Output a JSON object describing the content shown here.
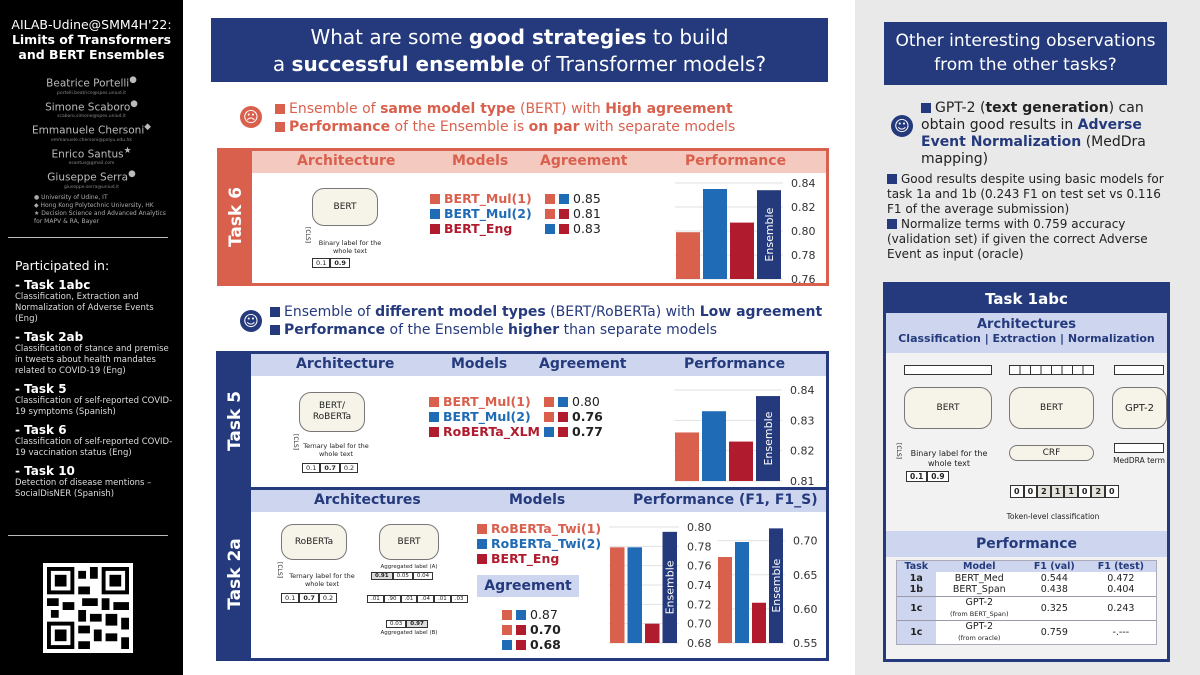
{
  "sidebar": {
    "title_line1": "AILAB-Udine@SMM4H'22:",
    "title_line2": "Limits of Transformers",
    "title_line3": "and BERT Ensembles",
    "authors": [
      {
        "name": "Beatrice Portelli",
        "mark": "●",
        "email": "portelli.beatrice@spes.uniud.it"
      },
      {
        "name": "Simone Scaboro",
        "mark": "●",
        "email": "scaboro.simone@spes.uniud.it"
      },
      {
        "name": "Emmanuele Chersoni",
        "mark": "◆",
        "email": "emmanuele.chersoni@polyu.edu.hk"
      },
      {
        "name": "Enrico Santus",
        "mark": "★",
        "email": "esantus@gmail.com"
      },
      {
        "name": "Giuseppe Serra",
        "mark": "●",
        "email": "giuseppe.serra@uniud.it"
      }
    ],
    "affiliations": [
      "● University of Udine, IT",
      "◆ Hong Kong Polytechnic University, HK",
      "★ Decision Science and Advanced Analytics for MAPV & RA, Bayer"
    ],
    "participated": "Participated in:",
    "tasks": [
      {
        "name": "- Task 1abc",
        "desc": "Classification, Extraction and Normalization of Adverse Events (Eng)"
      },
      {
        "name": "- Task 2ab",
        "desc": "Classification of stance and premise in tweets about health mandates related to COVID-19 (Eng)"
      },
      {
        "name": "- Task 5",
        "desc": "Classification of self-reported COVID-19 symptoms (Spanish)"
      },
      {
        "name": "- Task 6",
        "desc": "Classification of self-reported COVID-19 vaccination status (Eng)"
      },
      {
        "name": "- Task 10",
        "desc": "Detection of disease mentions – SocialDisNER (Spanish)"
      }
    ]
  },
  "main": {
    "title": {
      "a": "What are some ",
      "b": "good strategies",
      "c": " to build",
      "d": "a ",
      "e": "successful ensemble",
      "f": " of Transformer models?"
    },
    "sad": {
      "icon": "sad-face-icon",
      "l1": [
        "Ensemble of ",
        "same model type",
        " (BERT) with ",
        "High agreement"
      ],
      "l2": [
        "Performance",
        " of the Ensemble is ",
        "on par",
        " with separate models"
      ]
    },
    "happy": {
      "icon": "happy-face-icon",
      "l1": [
        "Ensemble of ",
        "different model types",
        " (BERT/RoBERTa) with ",
        "Low agreement"
      ],
      "l2": [
        "Performance",
        " of the Ensemble ",
        "higher",
        " than separate models"
      ]
    },
    "headers": {
      "architecture": "Architecture",
      "architectures": "Architectures",
      "models": "Models",
      "agreement": "Agreement",
      "performance": "Performance",
      "performance_f1": "Performance (F1, F1_S)"
    },
    "task6": {
      "label": "Task 6",
      "box": "BERT",
      "cls": "[CLS]",
      "note": "Binary label for the whole text",
      "cells": [
        "0.1",
        "0.9"
      ],
      "models": [
        "BERT_Mul(1)",
        "BERT_Mul(2)",
        "BERT_Eng"
      ],
      "agreement": [
        "0.85",
        "0.81",
        "0.83"
      ]
    },
    "task5": {
      "label": "Task 5",
      "box": "BERT/ RoBERTa",
      "cls": "[CLS]",
      "note": "Ternary label for the whole text",
      "cells": [
        "0.1",
        "0.7",
        "0.2"
      ],
      "models": [
        "BERT_Mul(1)",
        "BERT_Mul(2)",
        "RoBERTa_XLM"
      ],
      "agreement": [
        "0.80",
        "0.76",
        "0.77"
      ]
    },
    "task2a": {
      "label": "Task 2a",
      "box1": "RoBERTa",
      "box2": "BERT",
      "cls": "[CLS]",
      "note": "Ternary label for the whole text",
      "cells": [
        "0.1",
        "0.7",
        "0.2"
      ],
      "agg_a": "Aggregated label (A)",
      "agg_a_cells": [
        "0.91",
        "0.05",
        "0.04"
      ],
      "mid_cells": [
        ".01",
        ".90",
        ".01",
        ".04",
        ".01",
        ".03"
      ],
      "agg_b": "Aggregated label (B)",
      "agg_b_cells": [
        "0.03",
        "0.97"
      ],
      "models": [
        "RoBERTa_Twi(1)",
        "RoBERTa_Twi(2)",
        "BERT_Eng"
      ],
      "agreement": [
        "0.87",
        "0.70",
        "0.68"
      ]
    }
  },
  "colors": {
    "m1": "#d9604d",
    "m2": "#1f6bb5",
    "m3": "#b01c2e",
    "ens": "#253a7d"
  },
  "chart_data": [
    {
      "id": "task6",
      "type": "bar",
      "categories": [
        "BERT_Mul(1)",
        "BERT_Mul(2)",
        "BERT_Eng",
        "Ensemble"
      ],
      "values": [
        0.799,
        0.835,
        0.807,
        0.834
      ],
      "ylim": [
        0.76,
        0.84
      ],
      "ticks": [
        "0.84",
        "0.82",
        "0.80",
        "0.78",
        "0.76"
      ],
      "ensemble_label": "Ensemble"
    },
    {
      "id": "task5",
      "type": "bar",
      "categories": [
        "BERT_Mul(1)",
        "BERT_Mul(2)",
        "RoBERTa_XLM",
        "Ensemble"
      ],
      "values": [
        0.826,
        0.833,
        0.823,
        0.838
      ],
      "ylim": [
        0.81,
        0.84
      ],
      "ticks": [
        "0.84",
        "0.83",
        "0.82",
        "0.81"
      ],
      "ensemble_label": "Ensemble"
    },
    {
      "id": "task2a_f1",
      "type": "bar",
      "categories": [
        "RoBERTa_Twi(1)",
        "RoBERTa_Twi(2)",
        "BERT_Eng",
        "Ensemble"
      ],
      "values": [
        0.779,
        0.779,
        0.7,
        0.795
      ],
      "ylim": [
        0.68,
        0.8
      ],
      "ticks": [
        "0.80",
        "0.78",
        "0.76",
        "0.74",
        "0.72",
        "0.70",
        "0.68"
      ],
      "ensemble_label": "Ensemble"
    },
    {
      "id": "task2a_f1s",
      "type": "bar",
      "categories": [
        "RoBERTa_Twi(1)",
        "RoBERTa_Twi(2)",
        "BERT_Eng",
        "Ensemble"
      ],
      "values": [
        0.676,
        0.698,
        0.609,
        0.718
      ],
      "ylim": [
        0.55,
        0.72
      ],
      "ticks": [
        "0.70",
        "0.65",
        "0.60",
        "0.55"
      ],
      "ensemble_label": "Ensemble"
    }
  ],
  "right": {
    "title_l1": "Other interesting observations",
    "title_l2": "from the other tasks?",
    "gpt": [
      "GPT-2 (",
      "text generation",
      ") can obtain good results in ",
      "Adverse Event Normalization",
      " (MedDra mapping)"
    ],
    "b1": "Good results despite using basic models for task 1a and 1b (0.243 F1 on test set vs 0.116 F1 of the average submission)",
    "b2": "Normalize terms with 0.759 accuracy (validation set) if given the correct Adverse Event as input (oracle)",
    "task_title": "Task 1abc",
    "arch_title": "Architectures",
    "arch_sub": "Classification | Extraction | Normalization",
    "bert": "BERT",
    "cls": "[CLS]",
    "binary": "Binary label for the whole text",
    "cells": [
      "0.1",
      "0.9"
    ],
    "crf": "CRF",
    "tokens": [
      "0",
      "0",
      "2",
      "1",
      "1",
      "0",
      "2",
      "0"
    ],
    "token_label": "Token-level classification",
    "gpt2": "GPT-2",
    "meddra": "MedDRA term",
    "perf_title": "Performance",
    "table": {
      "headers": [
        "Task",
        "Model",
        "F1 (val)",
        "F1 (test)"
      ],
      "rows": [
        [
          "1a",
          "BERT_Med",
          "",
          "0.544",
          "0.472"
        ],
        [
          "1b",
          "BERT_Span",
          "",
          "0.438",
          "0.404"
        ],
        [
          "1c",
          "GPT-2",
          "(from BERT_Span)",
          "0.325",
          "0.243"
        ],
        [
          "1c",
          "GPT-2",
          "(from oracle)",
          "0.759",
          "-.---"
        ]
      ]
    }
  }
}
